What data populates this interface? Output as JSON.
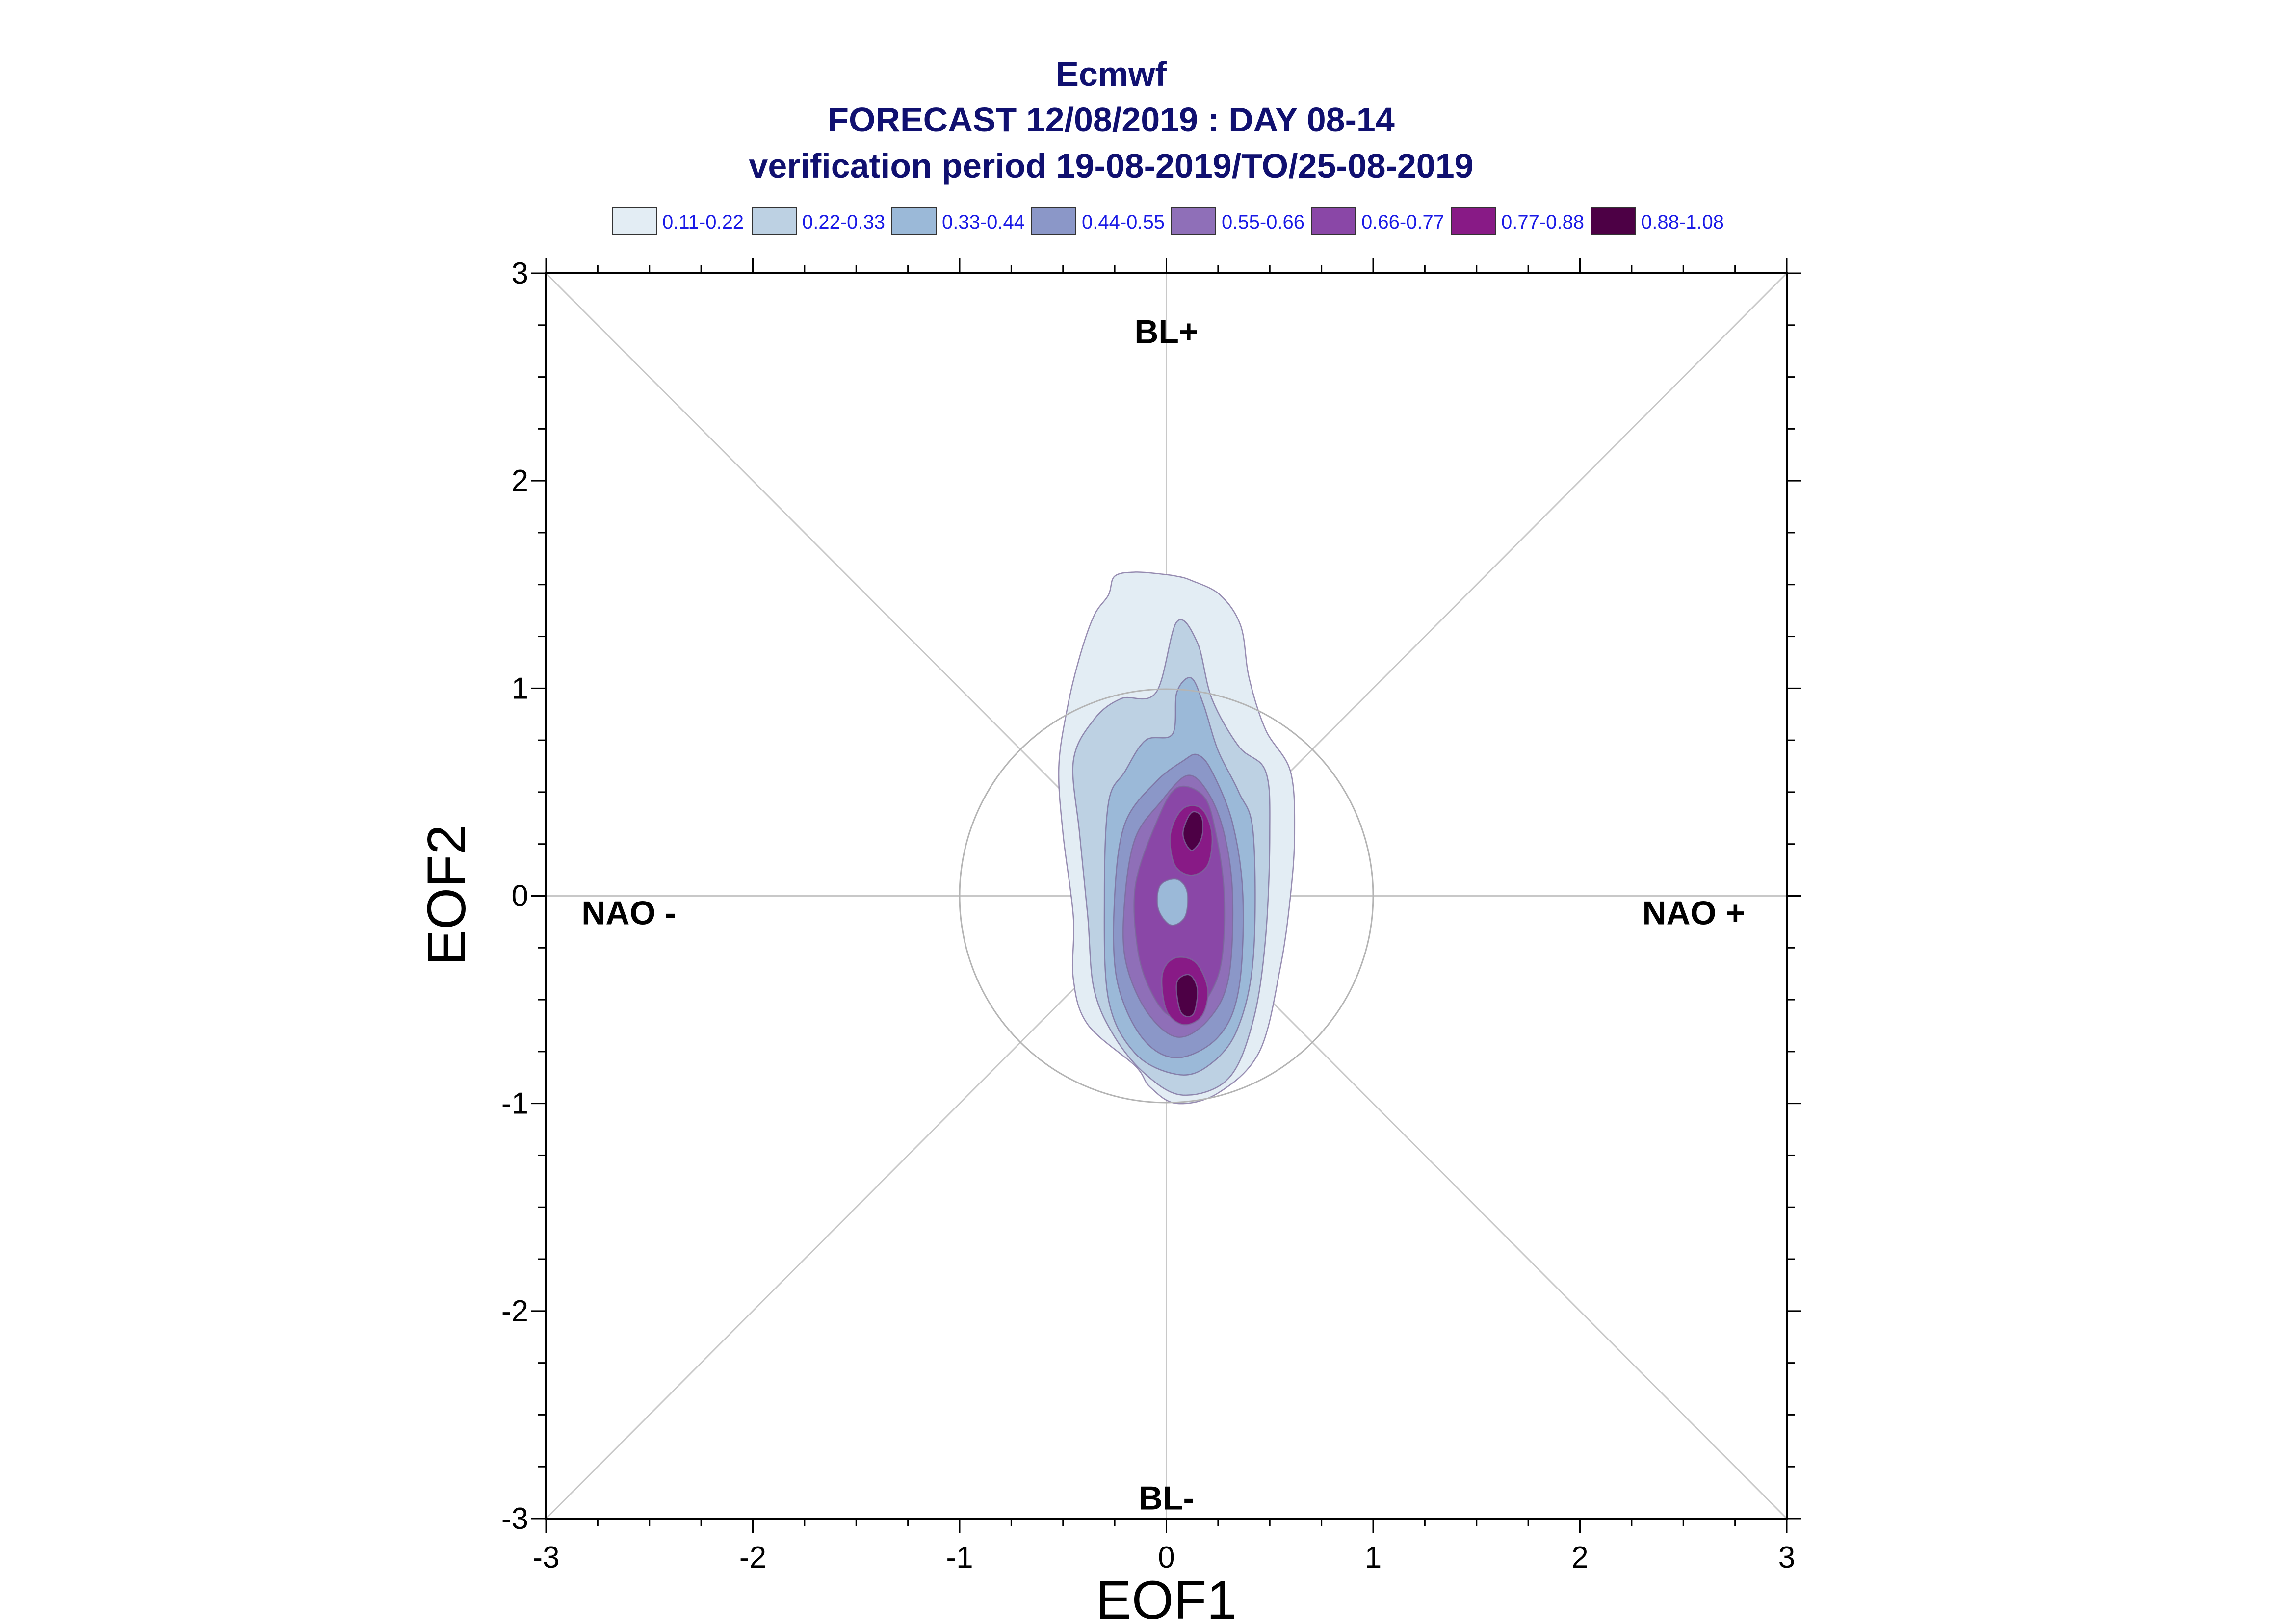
{
  "chart_data": {
    "type": "contour",
    "title_lines": [
      "Ecmwf",
      "FORECAST 12/08/2019 : DAY 08-14",
      "verification period 19-08-2019/TO/25-08-2019"
    ],
    "xlabel": "EOF1",
    "ylabel": "EOF2",
    "xlim": [
      -3,
      3
    ],
    "ylim": [
      -3,
      3
    ],
    "xticks": [
      "-3",
      "-2",
      "-1",
      "0",
      "1",
      "2",
      "3"
    ],
    "yticks": [
      "-3",
      "-2",
      "-1",
      "0",
      "1",
      "2",
      "3"
    ],
    "legend": {
      "position": "top",
      "entries": [
        {
          "label": "0.11-0.22",
          "color": "#e3edf4"
        },
        {
          "label": "0.22-0.33",
          "color": "#bdd1e3"
        },
        {
          "label": "0.33-0.44",
          "color": "#9bb9d8"
        },
        {
          "label": "0.44-0.55",
          "color": "#8b97c8"
        },
        {
          "label": "0.55-0.66",
          "color": "#8f6fb8"
        },
        {
          "label": "0.66-0.77",
          "color": "#8a47a7"
        },
        {
          "label": "0.77-0.88",
          "color": "#881a86"
        },
        {
          "label": "0.88-1.08",
          "color": "#4d0045"
        }
      ]
    },
    "regime_labels": [
      {
        "text": "BL+",
        "x": 0,
        "y": 2.72
      },
      {
        "text": "BL-",
        "x": 0,
        "y": -2.9
      },
      {
        "text": "NAO -",
        "x": -2.6,
        "y": -0.08
      },
      {
        "text": "NAO +",
        "x": 2.55,
        "y": -0.08
      }
    ],
    "reference_circle_radius": 1,
    "contours": [
      {
        "level": "0.11-0.22",
        "points": [
          [
            -0.28,
            1.45
          ],
          [
            -0.25,
            1.54
          ],
          [
            -0.15,
            1.56
          ],
          [
            -0.02,
            1.55
          ],
          [
            0.05,
            1.54
          ],
          [
            0.12,
            1.52
          ],
          [
            0.26,
            1.45
          ],
          [
            0.36,
            1.3
          ],
          [
            0.4,
            1.05
          ],
          [
            0.48,
            0.8
          ],
          [
            0.6,
            0.6
          ],
          [
            0.62,
            0.3
          ],
          [
            0.6,
            0
          ],
          [
            0.55,
            -0.35
          ],
          [
            0.45,
            -0.75
          ],
          [
            0.25,
            -0.95
          ],
          [
            0.05,
            -1
          ],
          [
            -0.08,
            -0.92
          ],
          [
            -0.15,
            -0.82
          ],
          [
            -0.38,
            -0.62
          ],
          [
            -0.45,
            -0.4
          ],
          [
            -0.45,
            -0.1
          ],
          [
            -0.5,
            0.3
          ],
          [
            -0.52,
            0.62
          ],
          [
            -0.48,
            0.9
          ],
          [
            -0.42,
            1.15
          ],
          [
            -0.35,
            1.35
          ]
        ]
      },
      {
        "level": "0.22-0.33",
        "points": [
          [
            -0.45,
            0.65
          ],
          [
            -0.35,
            0.85
          ],
          [
            -0.22,
            0.95
          ],
          [
            -0.05,
            0.98
          ],
          [
            0.05,
            1.32
          ],
          [
            0.15,
            1.22
          ],
          [
            0.22,
            0.95
          ],
          [
            0.35,
            0.72
          ],
          [
            0.48,
            0.6
          ],
          [
            0.5,
            0.3
          ],
          [
            0.48,
            -0.2
          ],
          [
            0.42,
            -0.6
          ],
          [
            0.3,
            -0.88
          ],
          [
            0.08,
            -0.96
          ],
          [
            -0.1,
            -0.86
          ],
          [
            -0.25,
            -0.68
          ],
          [
            -0.35,
            -0.45
          ],
          [
            -0.38,
            -0.1
          ],
          [
            -0.42,
            0.3
          ]
        ]
      },
      {
        "level": "0.33-0.44",
        "points": [
          [
            -0.28,
            0.45
          ],
          [
            -0.2,
            0.6
          ],
          [
            -0.1,
            0.75
          ],
          [
            0.03,
            0.78
          ],
          [
            0.05,
            0.98
          ],
          [
            0.12,
            1.05
          ],
          [
            0.18,
            0.92
          ],
          [
            0.25,
            0.7
          ],
          [
            0.35,
            0.5
          ],
          [
            0.42,
            0.3
          ],
          [
            0.42,
            -0.3
          ],
          [
            0.34,
            -0.65
          ],
          [
            0.2,
            -0.82
          ],
          [
            0.05,
            -0.86
          ],
          [
            -0.15,
            -0.76
          ],
          [
            -0.28,
            -0.5
          ],
          [
            -0.3,
            0
          ]
        ]
      },
      {
        "level": "0.44-0.55",
        "points": [
          [
            -0.2,
            0.35
          ],
          [
            -0.05,
            0.55
          ],
          [
            0.08,
            0.65
          ],
          [
            0.15,
            0.68
          ],
          [
            0.22,
            0.6
          ],
          [
            0.32,
            0.35
          ],
          [
            0.37,
            0
          ],
          [
            0.35,
            -0.45
          ],
          [
            0.25,
            -0.68
          ],
          [
            0.05,
            -0.78
          ],
          [
            -0.12,
            -0.68
          ],
          [
            -0.24,
            -0.4
          ],
          [
            -0.25,
            0
          ]
        ]
      },
      {
        "level": "0.55-0.66",
        "points": [
          [
            -0.15,
            0.28
          ],
          [
            -0.03,
            0.45
          ],
          [
            0.1,
            0.58
          ],
          [
            0.2,
            0.5
          ],
          [
            0.28,
            0.3
          ],
          [
            0.32,
            0
          ],
          [
            0.3,
            -0.4
          ],
          [
            0.2,
            -0.6
          ],
          [
            0.05,
            -0.68
          ],
          [
            -0.1,
            -0.55
          ],
          [
            -0.2,
            -0.3
          ],
          [
            -0.2,
            0
          ]
        ]
      },
      {
        "level": "0.66-0.77",
        "points": [
          [
            -0.05,
            0.35
          ],
          [
            0.05,
            0.52
          ],
          [
            0.18,
            0.48
          ],
          [
            0.24,
            0.3
          ],
          [
            0.28,
            0
          ],
          [
            0.26,
            -0.35
          ],
          [
            0.15,
            -0.55
          ],
          [
            0.02,
            -0.58
          ],
          [
            -0.08,
            -0.45
          ],
          [
            -0.14,
            -0.25
          ],
          [
            -0.15,
            0.05
          ]
        ]
      },
      {
        "level": "0.77-0.88",
        "points": [
          [
            0.02,
            0.3
          ],
          [
            0.08,
            0.42
          ],
          [
            0.17,
            0.42
          ],
          [
            0.22,
            0.3
          ],
          [
            0.2,
            0.15
          ],
          [
            0.12,
            0.1
          ],
          [
            0.04,
            0.15
          ]
        ]
      },
      {
        "level": "0.77-0.88",
        "points": [
          [
            -0.02,
            -0.38
          ],
          [
            0.04,
            -0.3
          ],
          [
            0.14,
            -0.32
          ],
          [
            0.2,
            -0.45
          ],
          [
            0.17,
            -0.58
          ],
          [
            0.08,
            -0.62
          ],
          [
            0.0,
            -0.55
          ]
        ]
      },
      {
        "level": "0.88-1.08",
        "points": [
          [
            0.08,
            0.3
          ],
          [
            0.12,
            0.4
          ],
          [
            0.17,
            0.38
          ],
          [
            0.17,
            0.28
          ],
          [
            0.12,
            0.22
          ]
        ]
      },
      {
        "level": "0.88-1.08",
        "points": [
          [
            0.05,
            -0.42
          ],
          [
            0.11,
            -0.38
          ],
          [
            0.15,
            -0.45
          ],
          [
            0.13,
            -0.57
          ],
          [
            0.07,
            -0.56
          ]
        ]
      },
      {
        "level": "0.33-0.44",
        "points": [
          [
            -0.03,
            0.05
          ],
          [
            0.05,
            0.08
          ],
          [
            0.1,
            0.02
          ],
          [
            0.09,
            -0.1
          ],
          [
            0.02,
            -0.14
          ],
          [
            -0.04,
            -0.06
          ]
        ]
      }
    ]
  }
}
